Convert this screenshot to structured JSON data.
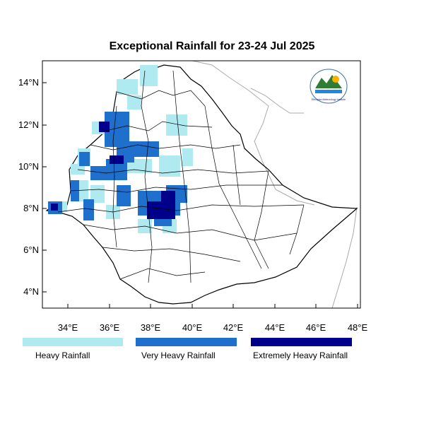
{
  "title": "Exceptional Rainfall for 23-24 Jul 2025",
  "axes": {
    "lon_ticks": [
      "34°E",
      "36°E",
      "38°E",
      "40°E",
      "42°E",
      "44°E",
      "46°E",
      "48°E"
    ],
    "lat_ticks": [
      "4°N",
      "6°N",
      "8°N",
      "10°N",
      "12°N",
      "14°N"
    ]
  },
  "legend": [
    {
      "label": "Heavy Rainfall",
      "color": "#aeeaf0"
    },
    {
      "label": "Very Heavy Rainfall",
      "color": "#1f6fcc"
    },
    {
      "label": "Extremely Heavy Rainfall",
      "color": "#00008b"
    }
  ],
  "logo": {
    "text": "Ethiopian Meteorology Institute"
  }
}
